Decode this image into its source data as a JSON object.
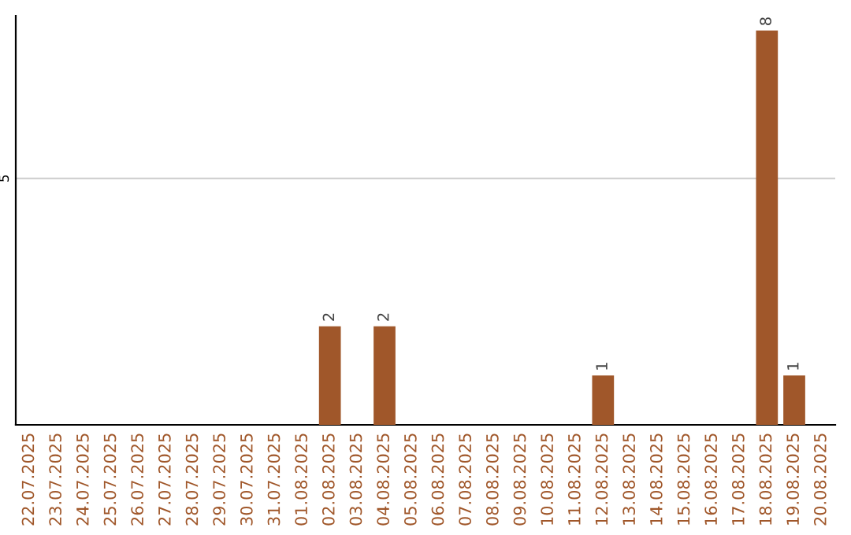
{
  "chart_data": {
    "type": "bar",
    "categories": [
      "22.07.2025",
      "23.07.2025",
      "24.07.2025",
      "25.07.2025",
      "26.07.2025",
      "27.07.2025",
      "28.07.2025",
      "29.07.2025",
      "30.07.2025",
      "31.07.2025",
      "01.08.2025",
      "02.08.2025",
      "03.08.2025",
      "04.08.2025",
      "05.08.2025",
      "06.08.2025",
      "07.08.2025",
      "08.08.2025",
      "09.08.2025",
      "10.08.2025",
      "11.08.2025",
      "12.08.2025",
      "13.08.2025",
      "14.08.2025",
      "15.08.2025",
      "16.08.2025",
      "17.08.2025",
      "18.08.2025",
      "19.08.2025",
      "20.08.2025"
    ],
    "values": [
      0,
      0,
      0,
      0,
      0,
      0,
      0,
      0,
      0,
      0,
      0,
      2,
      0,
      2,
      0,
      0,
      0,
      0,
      0,
      0,
      0,
      1,
      0,
      0,
      0,
      0,
      0,
      8,
      1,
      0
    ],
    "value_labels": [
      null,
      null,
      null,
      null,
      null,
      null,
      null,
      null,
      null,
      null,
      null,
      "2",
      null,
      "2",
      null,
      null,
      null,
      null,
      null,
      null,
      null,
      "1",
      null,
      null,
      null,
      null,
      null,
      "8",
      "1",
      null
    ],
    "color": "#a0572a",
    "ylim": [
      0,
      8.3
    ],
    "yticks": [
      5
    ],
    "grid": "y"
  }
}
